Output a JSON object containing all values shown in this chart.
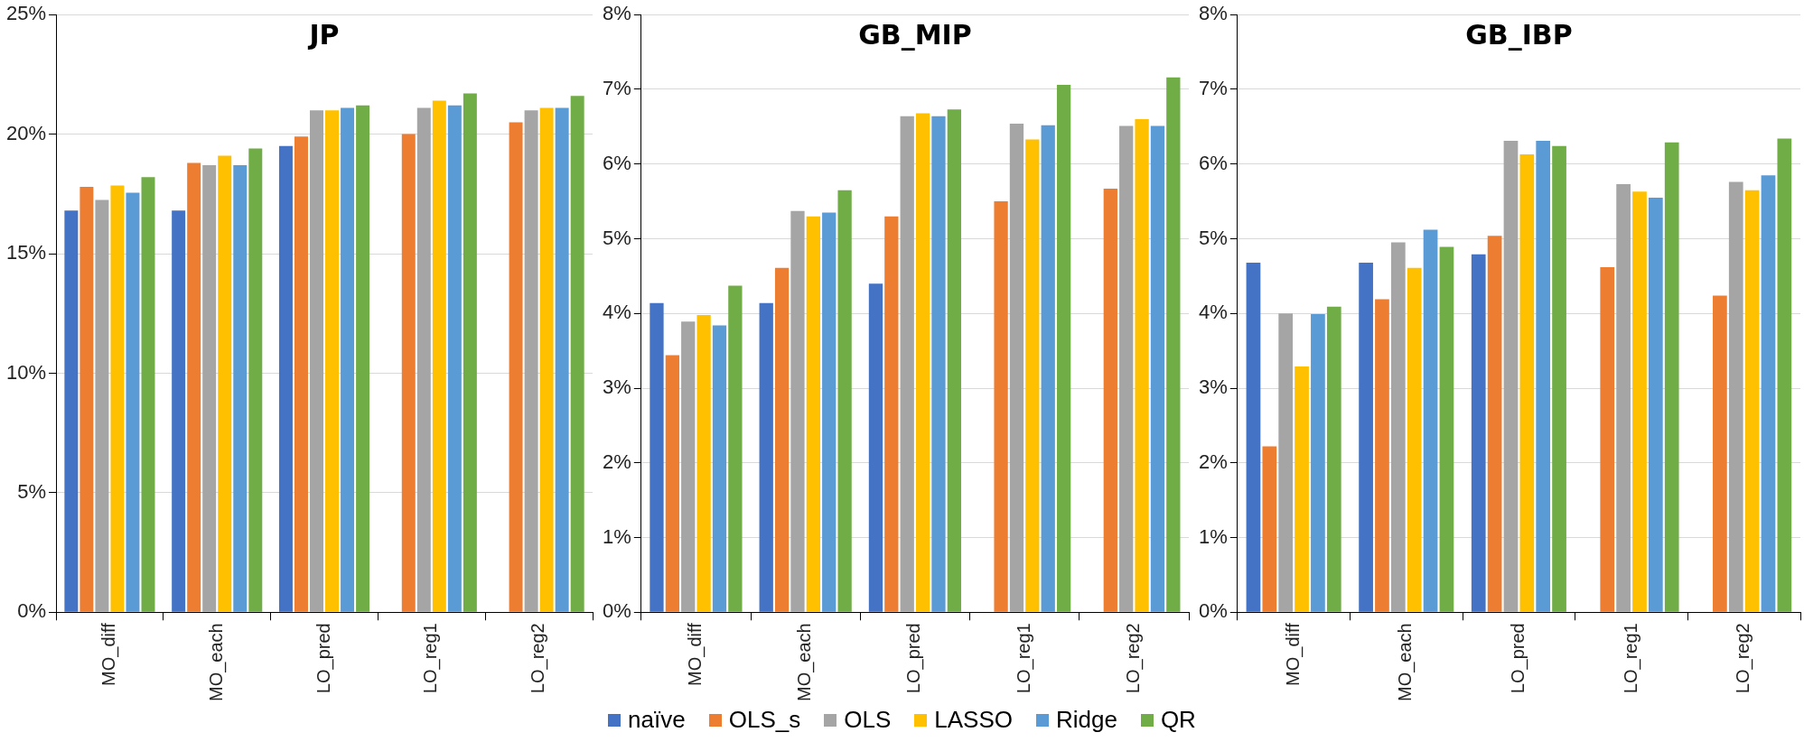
{
  "chart_data": [
    {
      "type": "bar",
      "title": "JP",
      "categories": [
        "MO_diff",
        "MO_each",
        "LO_pred",
        "LO_reg1",
        "LO_reg2"
      ],
      "series": [
        {
          "name": "naïve",
          "color": "#4472c4",
          "values": [
            16.8,
            16.8,
            19.5,
            null,
            null
          ]
        },
        {
          "name": "OLS_s",
          "color": "#ed7d31",
          "values": [
            17.8,
            18.8,
            19.9,
            20.0,
            20.5
          ]
        },
        {
          "name": "OLS",
          "color": "#a5a5a5",
          "values": [
            17.25,
            18.7,
            21.0,
            21.1,
            21.0
          ]
        },
        {
          "name": "LASSO",
          "color": "#ffc000",
          "values": [
            17.85,
            19.1,
            21.0,
            21.4,
            21.1
          ]
        },
        {
          "name": "Ridge",
          "color": "#5b9bd5",
          "values": [
            17.55,
            18.7,
            21.1,
            21.2,
            21.1
          ]
        },
        {
          "name": "QR",
          "color": "#70ad47",
          "values": [
            18.2,
            19.4,
            21.2,
            21.7,
            21.6
          ]
        }
      ],
      "ylim": [
        0,
        25
      ],
      "yticks": [
        {
          "value": 0,
          "label": "0%"
        },
        {
          "value": 5,
          "label": "5%"
        },
        {
          "value": 10,
          "label": "10%"
        },
        {
          "value": 15,
          "label": "15%"
        },
        {
          "value": 20,
          "label": "20%"
        },
        {
          "value": 25,
          "label": "25%"
        }
      ],
      "grid": "y",
      "legend": "bottom"
    },
    {
      "type": "bar",
      "title": "GB_MIP",
      "categories": [
        "MO_diff",
        "MO_each",
        "LO_pred",
        "LO_reg1",
        "LO_reg2"
      ],
      "series": [
        {
          "color": "#4472c4",
          "values": [
            4.14,
            4.14,
            4.4,
            null,
            null
          ]
        },
        {
          "color": "#ed7d31",
          "values": [
            3.44,
            4.61,
            5.3,
            5.5,
            5.67
          ]
        },
        {
          "color": "#a5a5a5",
          "values": [
            3.89,
            5.37,
            6.64,
            6.54,
            6.51
          ]
        },
        {
          "color": "#ffc000",
          "values": [
            3.98,
            5.3,
            6.68,
            6.33,
            6.6
          ]
        },
        {
          "color": "#5b9bd5",
          "values": [
            3.84,
            5.35,
            6.64,
            6.52,
            6.51
          ]
        },
        {
          "color": "#70ad47",
          "values": [
            4.37,
            5.65,
            6.73,
            7.06,
            7.16
          ]
        }
      ],
      "ylim": [
        0,
        8
      ],
      "yticks": [
        {
          "value": 0,
          "label": "0%"
        },
        {
          "value": 1,
          "label": "1%"
        },
        {
          "value": 2,
          "label": "2%"
        },
        {
          "value": 3,
          "label": "3%"
        },
        {
          "value": 4,
          "label": "4%"
        },
        {
          "value": 5,
          "label": "5%"
        },
        {
          "value": 6,
          "label": "6%"
        },
        {
          "value": 7,
          "label": "7%"
        },
        {
          "value": 8,
          "label": "8%"
        }
      ],
      "grid": "y"
    },
    {
      "type": "bar",
      "title": "GB_IBP",
      "categories": [
        "MO_diff",
        "MO_each",
        "LO_pred",
        "LO_reg1",
        "LO_reg2"
      ],
      "series": [
        {
          "color": "#4472c4",
          "values": [
            4.68,
            4.68,
            4.79,
            null,
            null
          ]
        },
        {
          "color": "#ed7d31",
          "values": [
            2.22,
            4.19,
            5.04,
            4.62,
            4.24
          ]
        },
        {
          "color": "#a5a5a5",
          "values": [
            4.0,
            4.95,
            6.31,
            5.73,
            5.76
          ]
        },
        {
          "color": "#ffc000",
          "values": [
            3.29,
            4.61,
            6.13,
            5.63,
            5.65
          ]
        },
        {
          "color": "#5b9bd5",
          "values": [
            3.99,
            5.12,
            6.31,
            5.55,
            5.85
          ]
        },
        {
          "color": "#70ad47",
          "values": [
            4.09,
            4.89,
            6.24,
            6.29,
            6.34
          ]
        }
      ],
      "ylim": [
        0,
        8
      ],
      "yticks": [
        {
          "value": 0,
          "label": "0%"
        },
        {
          "value": 1,
          "label": "1%"
        },
        {
          "value": 2,
          "label": "2%"
        },
        {
          "value": 3,
          "label": "3%"
        },
        {
          "value": 4,
          "label": "4%"
        },
        {
          "value": 5,
          "label": "5%"
        },
        {
          "value": 6,
          "label": "6%"
        },
        {
          "value": 7,
          "label": "7%"
        },
        {
          "value": 8,
          "label": "8%"
        }
      ],
      "grid": "y"
    }
  ]
}
